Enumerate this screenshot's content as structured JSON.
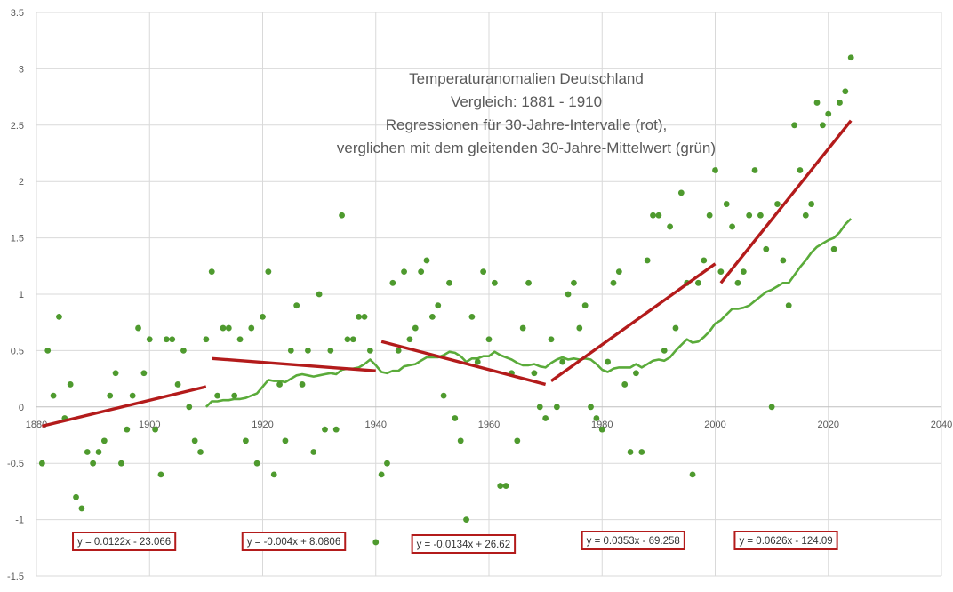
{
  "chart_data": {
    "type": "scatter",
    "title_lines": [
      "Temperaturanomalien Deutschland",
      "Vergleich: 1881 - 1910",
      "Regressionen für 30-Jahre-Intervalle (rot),",
      "verglichen mit dem gleitenden 30-Jahre-Mittelwert (grün)"
    ],
    "xlim": [
      1880,
      2040
    ],
    "ylim": [
      -1.5,
      3.5
    ],
    "x_ticks": [
      "1880",
      "1900",
      "1920",
      "1940",
      "1960",
      "1980",
      "2000",
      "2020",
      "2040"
    ],
    "y_ticks": [
      "3.5",
      "3",
      "2.5",
      "2",
      "1.5",
      "1",
      "0.5",
      "0",
      "-0.5",
      "-1",
      "-1.5"
    ],
    "grid": true,
    "colors": {
      "points": "#4e9a2e",
      "moving_average": "#5aab3a",
      "regression": "#b31b1b",
      "grid": "#d9d9d9",
      "text": "#595959"
    },
    "points": [
      [
        1881,
        -0.5
      ],
      [
        1882,
        0.5
      ],
      [
        1883,
        0.1
      ],
      [
        1884,
        0.8
      ],
      [
        1885,
        -0.1
      ],
      [
        1886,
        0.2
      ],
      [
        1887,
        -0.8
      ],
      [
        1888,
        -0.9
      ],
      [
        1889,
        -0.4
      ],
      [
        1890,
        -0.5
      ],
      [
        1891,
        -0.4
      ],
      [
        1892,
        -0.3
      ],
      [
        1893,
        0.1
      ],
      [
        1894,
        0.3
      ],
      [
        1895,
        -0.5
      ],
      [
        1896,
        -0.2
      ],
      [
        1897,
        0.1
      ],
      [
        1898,
        0.7
      ],
      [
        1899,
        0.3
      ],
      [
        1900,
        0.6
      ],
      [
        1901,
        -0.2
      ],
      [
        1902,
        -0.6
      ],
      [
        1903,
        0.6
      ],
      [
        1904,
        0.6
      ],
      [
        1905,
        0.2
      ],
      [
        1906,
        0.5
      ],
      [
        1907,
        0.0
      ],
      [
        1908,
        -0.3
      ],
      [
        1909,
        -0.4
      ],
      [
        1910,
        0.6
      ],
      [
        1911,
        1.2
      ],
      [
        1912,
        0.1
      ],
      [
        1913,
        0.7
      ],
      [
        1914,
        0.7
      ],
      [
        1915,
        0.1
      ],
      [
        1916,
        0.6
      ],
      [
        1917,
        -0.3
      ],
      [
        1918,
        0.7
      ],
      [
        1919,
        -0.5
      ],
      [
        1920,
        0.8
      ],
      [
        1921,
        1.2
      ],
      [
        1922,
        -0.6
      ],
      [
        1923,
        0.2
      ],
      [
        1924,
        -0.3
      ],
      [
        1925,
        0.5
      ],
      [
        1926,
        0.9
      ],
      [
        1927,
        0.2
      ],
      [
        1928,
        0.5
      ],
      [
        1929,
        -0.4
      ],
      [
        1930,
        1.0
      ],
      [
        1931,
        -0.2
      ],
      [
        1932,
        0.5
      ],
      [
        1933,
        -0.2
      ],
      [
        1934,
        1.7
      ],
      [
        1935,
        0.6
      ],
      [
        1936,
        0.6
      ],
      [
        1937,
        0.8
      ],
      [
        1938,
        0.8
      ],
      [
        1939,
        0.5
      ],
      [
        1940,
        -1.2
      ],
      [
        1941,
        -0.6
      ],
      [
        1942,
        -0.5
      ],
      [
        1943,
        1.1
      ],
      [
        1944,
        0.5
      ],
      [
        1945,
        1.2
      ],
      [
        1946,
        0.6
      ],
      [
        1947,
        0.7
      ],
      [
        1948,
        1.2
      ],
      [
        1949,
        1.3
      ],
      [
        1950,
        0.8
      ],
      [
        1951,
        0.9
      ],
      [
        1952,
        0.1
      ],
      [
        1953,
        1.1
      ],
      [
        1954,
        -0.1
      ],
      [
        1955,
        -0.3
      ],
      [
        1956,
        -1.0
      ],
      [
        1957,
        0.8
      ],
      [
        1958,
        0.4
      ],
      [
        1959,
        1.2
      ],
      [
        1960,
        0.6
      ],
      [
        1961,
        1.1
      ],
      [
        1962,
        -0.7
      ],
      [
        1963,
        -0.7
      ],
      [
        1964,
        0.3
      ],
      [
        1965,
        -0.3
      ],
      [
        1966,
        0.7
      ],
      [
        1967,
        1.1
      ],
      [
        1968,
        0.3
      ],
      [
        1969,
        0.0
      ],
      [
        1970,
        -0.1
      ],
      [
        1971,
        0.6
      ],
      [
        1972,
        0.0
      ],
      [
        1973,
        0.4
      ],
      [
        1974,
        1.0
      ],
      [
        1975,
        1.1
      ],
      [
        1976,
        0.7
      ],
      [
        1977,
        0.9
      ],
      [
        1978,
        0.0
      ],
      [
        1979,
        -0.1
      ],
      [
        1980,
        -0.2
      ],
      [
        1981,
        0.4
      ],
      [
        1982,
        1.1
      ],
      [
        1983,
        1.2
      ],
      [
        1984,
        0.2
      ],
      [
        1985,
        -0.4
      ],
      [
        1986,
        0.3
      ],
      [
        1987,
        -0.4
      ],
      [
        1988,
        1.3
      ],
      [
        1989,
        1.7
      ],
      [
        1990,
        1.7
      ],
      [
        1991,
        0.5
      ],
      [
        1992,
        1.6
      ],
      [
        1993,
        0.7
      ],
      [
        1994,
        1.9
      ],
      [
        1995,
        1.1
      ],
      [
        1996,
        -0.6
      ],
      [
        1997,
        1.1
      ],
      [
        1998,
        1.3
      ],
      [
        1999,
        1.7
      ],
      [
        2000,
        2.1
      ],
      [
        2001,
        1.2
      ],
      [
        2002,
        1.8
      ],
      [
        2003,
        1.6
      ],
      [
        2004,
        1.1
      ],
      [
        2005,
        1.2
      ],
      [
        2006,
        1.7
      ],
      [
        2007,
        2.1
      ],
      [
        2008,
        1.7
      ],
      [
        2009,
        1.4
      ],
      [
        2010,
        0.0
      ],
      [
        2011,
        1.8
      ],
      [
        2012,
        1.3
      ],
      [
        2013,
        0.9
      ],
      [
        2014,
        2.5
      ],
      [
        2015,
        2.1
      ],
      [
        2016,
        1.7
      ],
      [
        2017,
        1.8
      ],
      [
        2018,
        2.7
      ],
      [
        2019,
        2.5
      ],
      [
        2020,
        2.6
      ],
      [
        2021,
        1.4
      ],
      [
        2022,
        2.7
      ],
      [
        2023,
        2.8
      ],
      [
        2024,
        3.1
      ]
    ],
    "moving_average": [
      [
        1910,
        0.0
      ],
      [
        1911,
        0.05
      ],
      [
        1912,
        0.05
      ],
      [
        1913,
        0.06
      ],
      [
        1914,
        0.06
      ],
      [
        1915,
        0.07
      ],
      [
        1916,
        0.07
      ],
      [
        1917,
        0.08
      ],
      [
        1918,
        0.1
      ],
      [
        1919,
        0.12
      ],
      [
        1920,
        0.18
      ],
      [
        1921,
        0.24
      ],
      [
        1922,
        0.23
      ],
      [
        1923,
        0.23
      ],
      [
        1924,
        0.22
      ],
      [
        1925,
        0.25
      ],
      [
        1926,
        0.28
      ],
      [
        1927,
        0.29
      ],
      [
        1928,
        0.28
      ],
      [
        1929,
        0.27
      ],
      [
        1930,
        0.28
      ],
      [
        1931,
        0.29
      ],
      [
        1932,
        0.3
      ],
      [
        1933,
        0.29
      ],
      [
        1934,
        0.33
      ],
      [
        1935,
        0.34
      ],
      [
        1936,
        0.34
      ],
      [
        1937,
        0.35
      ],
      [
        1938,
        0.38
      ],
      [
        1939,
        0.42
      ],
      [
        1940,
        0.37
      ],
      [
        1941,
        0.31
      ],
      [
        1942,
        0.3
      ],
      [
        1943,
        0.32
      ],
      [
        1944,
        0.32
      ],
      [
        1945,
        0.36
      ],
      [
        1946,
        0.37
      ],
      [
        1947,
        0.38
      ],
      [
        1948,
        0.41
      ],
      [
        1949,
        0.44
      ],
      [
        1950,
        0.44
      ],
      [
        1951,
        0.44
      ],
      [
        1952,
        0.46
      ],
      [
        1953,
        0.49
      ],
      [
        1954,
        0.48
      ],
      [
        1955,
        0.45
      ],
      [
        1956,
        0.4
      ],
      [
        1957,
        0.43
      ],
      [
        1958,
        0.43
      ],
      [
        1959,
        0.45
      ],
      [
        1960,
        0.45
      ],
      [
        1961,
        0.49
      ],
      [
        1962,
        0.46
      ],
      [
        1963,
        0.44
      ],
      [
        1964,
        0.42
      ],
      [
        1965,
        0.39
      ],
      [
        1966,
        0.37
      ],
      [
        1967,
        0.37
      ],
      [
        1968,
        0.38
      ],
      [
        1969,
        0.36
      ],
      [
        1970,
        0.35
      ],
      [
        1971,
        0.39
      ],
      [
        1972,
        0.42
      ],
      [
        1973,
        0.44
      ],
      [
        1974,
        0.42
      ],
      [
        1975,
        0.43
      ],
      [
        1976,
        0.42
      ],
      [
        1977,
        0.43
      ],
      [
        1978,
        0.42
      ],
      [
        1979,
        0.38
      ],
      [
        1980,
        0.33
      ],
      [
        1981,
        0.31
      ],
      [
        1982,
        0.34
      ],
      [
        1983,
        0.35
      ],
      [
        1984,
        0.35
      ],
      [
        1985,
        0.35
      ],
      [
        1986,
        0.38
      ],
      [
        1987,
        0.35
      ],
      [
        1988,
        0.38
      ],
      [
        1989,
        0.41
      ],
      [
        1990,
        0.42
      ],
      [
        1991,
        0.41
      ],
      [
        1992,
        0.44
      ],
      [
        1993,
        0.5
      ],
      [
        1994,
        0.55
      ],
      [
        1995,
        0.6
      ],
      [
        1996,
        0.57
      ],
      [
        1997,
        0.58
      ],
      [
        1998,
        0.62
      ],
      [
        1999,
        0.67
      ],
      [
        2000,
        0.74
      ],
      [
        2001,
        0.77
      ],
      [
        2002,
        0.82
      ],
      [
        2003,
        0.87
      ],
      [
        2004,
        0.87
      ],
      [
        2005,
        0.88
      ],
      [
        2006,
        0.9
      ],
      [
        2007,
        0.94
      ],
      [
        2008,
        0.98
      ],
      [
        2009,
        1.02
      ],
      [
        2010,
        1.04
      ],
      [
        2011,
        1.07
      ],
      [
        2012,
        1.1
      ],
      [
        2013,
        1.1
      ],
      [
        2014,
        1.17
      ],
      [
        2015,
        1.24
      ],
      [
        2016,
        1.3
      ],
      [
        2017,
        1.37
      ],
      [
        2018,
        1.42
      ],
      [
        2019,
        1.45
      ],
      [
        2020,
        1.48
      ],
      [
        2021,
        1.5
      ],
      [
        2022,
        1.55
      ],
      [
        2023,
        1.62
      ],
      [
        2024,
        1.67
      ]
    ],
    "regressions": [
      {
        "x": [
          1881,
          1910
        ],
        "y": [
          -0.17,
          0.18
        ],
        "equation": "y = 0.0122x - 23.066"
      },
      {
        "x": [
          1911,
          1940
        ],
        "y": [
          0.43,
          0.32
        ],
        "equation": "y = -0.004x + 8.0806"
      },
      {
        "x": [
          1941,
          1970
        ],
        "y": [
          0.58,
          0.2
        ],
        "equation": "y = -0.0134x + 26.62"
      },
      {
        "x": [
          1971,
          2000
        ],
        "y": [
          0.23,
          1.27
        ],
        "equation": "y = 0.0353x - 69.258"
      },
      {
        "x": [
          2001,
          2024
        ],
        "y": [
          1.1,
          2.54
        ],
        "equation": "y = 0.0626x - 124.09"
      }
    ]
  }
}
